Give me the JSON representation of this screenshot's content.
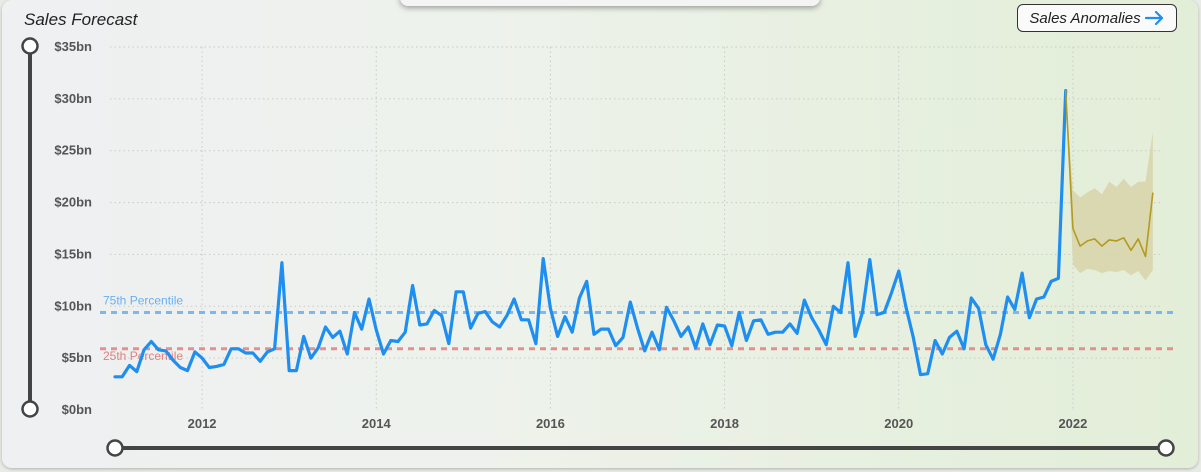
{
  "title": "Sales Forecast",
  "anomalies_button": {
    "label": "Sales Anomalies",
    "icon": "arrow-right-icon"
  },
  "colors": {
    "actual": "#1e8ff0",
    "forecast": "#b39a20",
    "band": "#d8d3a8",
    "p75": "#6aaef0",
    "p25": "#e08080"
  },
  "chart_data": {
    "type": "line",
    "title": "Sales Forecast",
    "xlabel": "",
    "ylabel": "",
    "ylim": [
      0,
      35
    ],
    "y_unit": "bn",
    "y_ticks": [
      "$0bn",
      "$5bn",
      "$10bn",
      "$15bn",
      "$20bn",
      "$25bn",
      "$30bn",
      "$35bn"
    ],
    "x_ticks": [
      "2012",
      "2014",
      "2016",
      "2018",
      "2020",
      "2022"
    ],
    "x_range": [
      2011.0,
      2023.0
    ],
    "grid": true,
    "series": [
      {
        "kind": "actual",
        "x": [
          2011.0,
          2011.083,
          2011.167,
          2011.25,
          2011.333,
          2011.417,
          2011.5,
          2011.583,
          2011.667,
          2011.75,
          2011.833,
          2011.917,
          2012.0,
          2012.083,
          2012.167,
          2012.25,
          2012.333,
          2012.417,
          2012.5,
          2012.583,
          2012.667,
          2012.75,
          2012.833,
          2012.917,
          2013.0,
          2013.083,
          2013.167,
          2013.25,
          2013.333,
          2013.417,
          2013.5,
          2013.583,
          2013.667,
          2013.75,
          2013.833,
          2013.917,
          2014.0,
          2014.083,
          2014.167,
          2014.25,
          2014.333,
          2014.417,
          2014.5,
          2014.583,
          2014.667,
          2014.75,
          2014.833,
          2014.917,
          2015.0,
          2015.083,
          2015.167,
          2015.25,
          2015.333,
          2015.417,
          2015.5,
          2015.583,
          2015.667,
          2015.75,
          2015.833,
          2015.917,
          2016.0,
          2016.083,
          2016.167,
          2016.25,
          2016.333,
          2016.417,
          2016.5,
          2016.583,
          2016.667,
          2016.75,
          2016.833,
          2016.917,
          2017.0,
          2017.083,
          2017.167,
          2017.25,
          2017.333,
          2017.417,
          2017.5,
          2017.583,
          2017.667,
          2017.75,
          2017.833,
          2017.917,
          2018.0,
          2018.083,
          2018.167,
          2018.25,
          2018.333,
          2018.417,
          2018.5,
          2018.583,
          2018.667,
          2018.75,
          2018.833,
          2018.917,
          2019.0,
          2019.083,
          2019.167,
          2019.25,
          2019.333,
          2019.417,
          2019.5,
          2019.583,
          2019.667,
          2019.75,
          2019.833,
          2019.917,
          2020.0,
          2020.083,
          2020.167,
          2020.25,
          2020.333,
          2020.417,
          2020.5,
          2020.583,
          2020.667,
          2020.75,
          2020.833,
          2020.917,
          2021.0,
          2021.083,
          2021.167,
          2021.25,
          2021.333,
          2021.417,
          2021.5,
          2021.583,
          2021.667,
          2021.75,
          2021.833,
          2021.917
        ],
        "y": [
          3.2,
          3.2,
          4.3,
          3.7,
          5.8,
          6.6,
          5.8,
          5.7,
          4.8,
          4.1,
          3.8,
          5.6,
          5.0,
          4.1,
          4.2,
          4.4,
          5.9,
          5.9,
          5.5,
          5.5,
          4.7,
          5.6,
          5.9,
          14.2,
          3.8,
          3.8,
          7.1,
          5.0,
          6.0,
          8.0,
          7.0,
          7.6,
          5.4,
          9.4,
          7.8,
          10.7,
          7.7,
          5.4,
          6.7,
          6.6,
          7.5,
          12.0,
          8.2,
          8.3,
          9.6,
          9.1,
          6.4,
          11.4,
          11.4,
          7.9,
          9.3,
          9.5,
          8.5,
          8.0,
          9.1,
          10.7,
          8.7,
          8.7,
          6.4,
          14.6,
          9.8,
          7.1,
          9.0,
          7.5,
          10.8,
          12.4,
          7.3,
          7.8,
          7.8,
          6.2,
          7.0,
          10.4,
          7.9,
          5.7,
          7.5,
          5.8,
          9.9,
          8.6,
          7.1,
          8.0,
          6.0,
          8.3,
          6.3,
          8.2,
          8.1,
          6.2,
          9.4,
          6.7,
          8.6,
          8.7,
          7.3,
          7.5,
          7.5,
          8.3,
          7.4,
          10.6,
          8.9,
          7.7,
          6.3,
          10.0,
          9.4,
          14.2,
          7.1,
          9.4,
          14.5,
          9.2,
          9.4,
          11.3,
          13.4,
          9.9,
          7.0,
          3.4,
          3.5,
          6.7,
          5.4,
          7.0,
          7.6,
          5.9,
          10.8,
          9.8,
          6.3,
          4.9,
          7.3,
          10.9,
          9.7,
          13.2,
          8.9,
          10.7,
          10.9,
          12.4,
          12.7,
          30.8
        ]
      },
      {
        "kind": "forecast",
        "x": [
          2021.917,
          2022.0,
          2022.083,
          2022.167,
          2022.25,
          2022.333,
          2022.417,
          2022.5,
          2022.583,
          2022.667,
          2022.75,
          2022.833,
          2022.917
        ],
        "y": [
          30.8,
          17.5,
          15.8,
          16.3,
          16.5,
          15.8,
          16.4,
          16.3,
          16.6,
          15.4,
          16.5,
          14.8,
          20.9
        ],
        "lower": [
          30.8,
          14.0,
          13.2,
          13.6,
          13.5,
          13.2,
          13.4,
          13.3,
          13.5,
          13.0,
          13.4,
          12.5,
          13.5
        ],
        "upper": [
          30.8,
          21.2,
          20.5,
          21.0,
          21.4,
          20.8,
          22.0,
          21.5,
          22.3,
          21.5,
          22.0,
          22.0,
          26.8
        ]
      }
    ],
    "reference_lines": [
      {
        "label": "75th Percentile",
        "value": 9.4,
        "color": "#6aaef0"
      },
      {
        "label": "25th Percentile",
        "value": 5.9,
        "color": "#e08080"
      }
    ],
    "sliders": {
      "vertical_range": [
        0,
        35
      ],
      "horizontal_range": [
        2011.0,
        2023.0
      ]
    }
  }
}
